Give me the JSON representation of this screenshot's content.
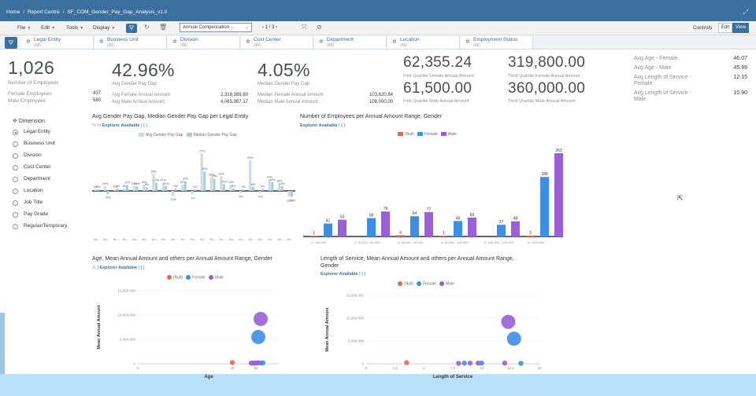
{
  "breadcrumb": {
    "home": "Home",
    "report_centre": "Report Centre",
    "story": "SF_COM_Gender_Pay_Gap_Analysis_v1.0"
  },
  "toolbar": {
    "file": "File",
    "edit": "Edit",
    "tools": "Tools",
    "display": "Display",
    "page_selector": "Annual Compensation ...",
    "pager": "1 / 3",
    "controls": "Controls",
    "edit_btn": "Edit",
    "view_btn": "View"
  },
  "filters": [
    {
      "label": "Legal Entity",
      "value": "(All)"
    },
    {
      "label": "Business Unit",
      "value": "(All)"
    },
    {
      "label": "Division",
      "value": "(All)"
    },
    {
      "label": "Cost Center",
      "value": "(All)"
    },
    {
      "label": "Department",
      "value": "(All)"
    },
    {
      "label": "Location",
      "value": "(All)"
    },
    {
      "label": "Employment Status",
      "value": "(All)"
    }
  ],
  "kpi": {
    "employees": {
      "value": "1,026",
      "label": "Number of Employees",
      "female_label": "Female Employees",
      "female": "437",
      "male_label": "Male Employees",
      "male": "580"
    },
    "avg_gap": {
      "value": "42.96%",
      "label": "Avg Gender Pay Gap",
      "f_label": "Avg Female Annual Amount",
      "f": "2,319,389.80",
      "m_label": "Avg Male Annual Amount",
      "m": "4,065,987.17"
    },
    "median_gap": {
      "value": "4.05%",
      "label": "Median Gender Pay Gap",
      "f_label": "Median Female Annual Amount",
      "f": "103,620.84",
      "m_label": "Median Male Annual Amount",
      "m": "108,000.00"
    },
    "q1f": {
      "value": "62,355.24",
      "label": "First Quartile Female Annual Amount"
    },
    "q1m": {
      "value": "61,500.00",
      "label": "First Quartile Male Annual Amount"
    },
    "q3f": {
      "value": "319,800.00",
      "label": "Third Quartile Female Annual Amount"
    },
    "q3m": {
      "value": "360,000.00",
      "label": "Third Quartile Male Annual Amount"
    },
    "right": [
      {
        "label": "Avg Age - Female",
        "value": "46.07"
      },
      {
        "label": "Avg Age - Male",
        "value": "45.99"
      },
      {
        "label": "Avg Length of Service - Female",
        "value": "12.15"
      },
      {
        "label": "Avg Length of Service - Male",
        "value": "10.90"
      }
    ]
  },
  "dimension": {
    "header": "Dimension",
    "items": [
      "Legal Entity",
      "Business Unit",
      "Division",
      "Cost Center",
      "Department",
      "Location",
      "Job Title",
      "Pay Grade",
      "Regular/Temporary"
    ],
    "selected": 0
  },
  "charts": {
    "c1": {
      "title": "Avg Gender Pay Gap, Median Gender Pay Gap per Legal Entity",
      "unit": "% %",
      "explorer": "Explorer Available",
      "legend": [
        "Avg Gender Pay Gap",
        "Median Gender Pay Gap"
      ]
    },
    "c2": {
      "title": "Number of Employees per Annual Amount Range, Gender",
      "explorer": "Explorer Available",
      "legend": [
        "(Null)",
        "Female",
        "Male"
      ]
    },
    "c3": {
      "title": "Age, Mean Annual Amount and others per Annual Amount Range, Gender",
      "explorer": "Explorer Available",
      "legend": [
        "(Null)",
        "Female",
        "Male"
      ]
    },
    "c4": {
      "title": "Length of Service, Mean Annual Amount and others per Annual Amount Range,",
      "title2": "Gender",
      "explorer": "Explorer Available",
      "legend": [
        "(Null)",
        "Female",
        "Male"
      ]
    }
  },
  "colors": {
    "null": "#e5694f",
    "female": "#3d8fe6",
    "male": "#9b5fd6",
    "avg": "#c6dde7",
    "median": "#a8cbd6"
  },
  "chart_data": [
    {
      "type": "bar",
      "title": "Avg Gender Pay Gap, Median Gender Pay Gap per Legal Entity",
      "categories": [
        "Bo...",
        "Bo...",
        "Bo...",
        "Bo...",
        "Bo...",
        "Bo...",
        "Bo...",
        "Bo...",
        "Bo...",
        "Bo...",
        "Bo...",
        "Bo...",
        "Bo...",
        "Bo...",
        "Bo...",
        "Bo...",
        "Bo...",
        "Bo...",
        "Bo...",
        "Bo...",
        "Bo..."
      ],
      "series": [
        {
          "name": "Avg Gender Pay Gap",
          "values": [
            3,
            10,
            3,
            5,
            10,
            13,
            35,
            17,
            -10,
            13,
            -7,
            77,
            28,
            30,
            13,
            -4,
            63,
            -4,
            23,
            15,
            -12
          ]
        },
        {
          "name": "Median Gender Pay Gap",
          "values": [
            3,
            -6,
            5,
            12,
            10,
            8,
            17,
            10,
            5,
            20,
            3,
            40,
            25,
            14,
            5,
            3,
            8,
            4,
            18,
            10,
            -12
          ]
        }
      ]
    },
    {
      "type": "bar",
      "title": "Number of Employees per Annual Amount Range, Gender",
      "categories": [
        "1: <40,000",
        "2: 40,000 - 60,000",
        "3: 60,000 - 80,000",
        "4: 80,000 - 100,000",
        "5: 100,000 - 120,000",
        "6: >120,000"
      ],
      "series": [
        {
          "name": "(Null)",
          "values": [
            1,
            0,
            4,
            1,
            0,
            3
          ]
        },
        {
          "name": "Female",
          "values": [
            41,
            58,
            64,
            49,
            37,
            188
          ]
        },
        {
          "name": "Male",
          "values": [
            53,
            79,
            77,
            60,
            48,
            263
          ]
        }
      ],
      "ylim": [
        0,
        263
      ]
    },
    {
      "type": "scatter",
      "title": "Age, Mean Annual Amount and others per Annual Amount Range, Gender",
      "xlabel": "Age",
      "ylabel": "Mean Annual Amount",
      "xlim": [
        0,
        60
      ],
      "ylim": [
        0,
        15000000
      ],
      "series": [
        {
          "name": "(Null)",
          "points": [
            [
              40,
              250000
            ]
          ]
        },
        {
          "name": "Female",
          "points": [
            [
              49,
              150000
            ],
            [
              50,
              150000
            ],
            [
              52,
              150000
            ],
            [
              51,
              5500000
            ],
            [
              53,
              200000
            ]
          ]
        },
        {
          "name": "Male",
          "points": [
            [
              48,
              150000
            ],
            [
              49,
              150000
            ],
            [
              50,
              150000
            ],
            [
              52,
              9200000
            ],
            [
              51,
              200000
            ]
          ]
        }
      ]
    },
    {
      "type": "scatter",
      "title": "Length of Service, Mean Annual Amount and others per Annual Amount Range, Gender",
      "xlabel": "Length of Service",
      "ylabel": "Mean Annual Amount",
      "xlim": [
        0,
        15
      ],
      "ylim": [
        0,
        15000000
      ],
      "series": [
        {
          "name": "(Null)",
          "points": [
            [
              3.5,
              250000
            ]
          ]
        },
        {
          "name": "Female",
          "points": [
            [
              12.8,
              5500000
            ],
            [
              13.4,
              100000
            ],
            [
              10,
              150000
            ],
            [
              8.5,
              150000
            ]
          ]
        },
        {
          "name": "Male",
          "points": [
            [
              12.3,
              9200000
            ],
            [
              9,
              150000
            ],
            [
              9.7,
              150000
            ],
            [
              12,
              150000
            ],
            [
              8,
              100000
            ]
          ]
        }
      ]
    }
  ]
}
